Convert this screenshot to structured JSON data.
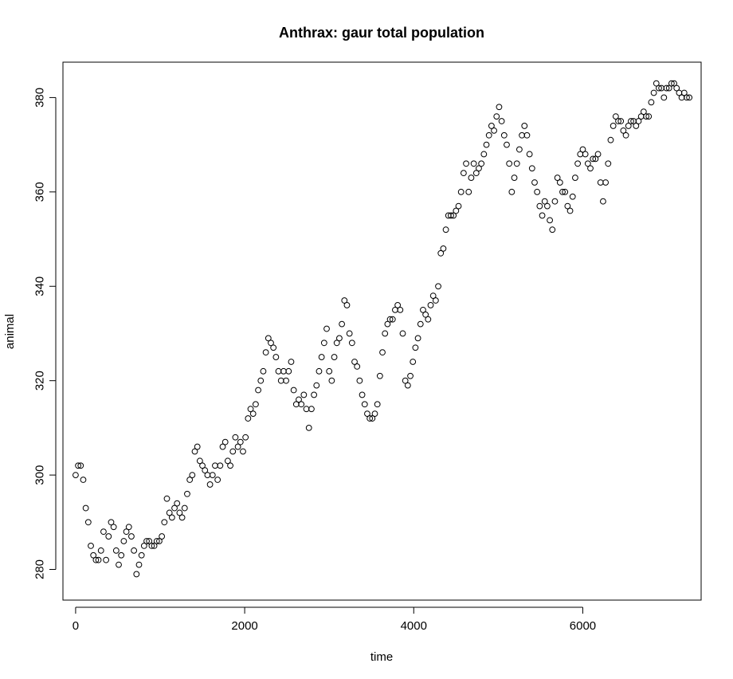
{
  "chart_data": {
    "type": "scatter",
    "title": "Anthrax: gaur total population",
    "xlabel": "time",
    "ylabel": "animal",
    "xlim": [
      -150,
      7400
    ],
    "ylim": [
      273.5,
      387.5
    ],
    "x_ticks": [
      0,
      2000,
      4000,
      6000
    ],
    "x_tick_labels": [
      "0",
      "2000",
      "4000",
      "6000"
    ],
    "y_ticks": [
      280,
      300,
      320,
      340,
      360,
      380
    ],
    "y_tick_labels": [
      "280",
      "300",
      "320",
      "340",
      "360",
      "380"
    ],
    "grid": false,
    "marker": "open-circle",
    "series": [
      {
        "points": [
          [
            0,
            300
          ],
          [
            30,
            302
          ],
          [
            60,
            302
          ],
          [
            90,
            299
          ],
          [
            120,
            293
          ],
          [
            150,
            290
          ],
          [
            180,
            285
          ],
          [
            210,
            283
          ],
          [
            240,
            282
          ],
          [
            270,
            282
          ],
          [
            300,
            284
          ],
          [
            330,
            288
          ],
          [
            360,
            282
          ],
          [
            390,
            287
          ],
          [
            420,
            290
          ],
          [
            450,
            289
          ],
          [
            480,
            284
          ],
          [
            510,
            281
          ],
          [
            540,
            283
          ],
          [
            570,
            286
          ],
          [
            600,
            288
          ],
          [
            630,
            289
          ],
          [
            660,
            287
          ],
          [
            690,
            284
          ],
          [
            720,
            279
          ],
          [
            750,
            281
          ],
          [
            780,
            283
          ],
          [
            810,
            285
          ],
          [
            840,
            286
          ],
          [
            870,
            286
          ],
          [
            900,
            285
          ],
          [
            930,
            285
          ],
          [
            960,
            286
          ],
          [
            990,
            286
          ],
          [
            1020,
            287
          ],
          [
            1050,
            290
          ],
          [
            1080,
            295
          ],
          [
            1110,
            292
          ],
          [
            1140,
            291
          ],
          [
            1170,
            293
          ],
          [
            1200,
            294
          ],
          [
            1230,
            292
          ],
          [
            1260,
            291
          ],
          [
            1290,
            293
          ],
          [
            1320,
            296
          ],
          [
            1350,
            299
          ],
          [
            1380,
            300
          ],
          [
            1410,
            305
          ],
          [
            1440,
            306
          ],
          [
            1470,
            303
          ],
          [
            1500,
            302
          ],
          [
            1530,
            301
          ],
          [
            1560,
            300
          ],
          [
            1590,
            298
          ],
          [
            1620,
            300
          ],
          [
            1650,
            302
          ],
          [
            1680,
            299
          ],
          [
            1710,
            302
          ],
          [
            1740,
            306
          ],
          [
            1770,
            307
          ],
          [
            1800,
            303
          ],
          [
            1830,
            302
          ],
          [
            1860,
            305
          ],
          [
            1890,
            308
          ],
          [
            1920,
            306
          ],
          [
            1950,
            307
          ],
          [
            1980,
            305
          ],
          [
            2010,
            308
          ],
          [
            2040,
            312
          ],
          [
            2070,
            314
          ],
          [
            2100,
            313
          ],
          [
            2130,
            315
          ],
          [
            2160,
            318
          ],
          [
            2190,
            320
          ],
          [
            2220,
            322
          ],
          [
            2250,
            326
          ],
          [
            2280,
            329
          ],
          [
            2310,
            328
          ],
          [
            2340,
            327
          ],
          [
            2370,
            325
          ],
          [
            2400,
            322
          ],
          [
            2430,
            320
          ],
          [
            2460,
            322
          ],
          [
            2490,
            320
          ],
          [
            2520,
            322
          ],
          [
            2550,
            324
          ],
          [
            2580,
            318
          ],
          [
            2610,
            315
          ],
          [
            2640,
            316
          ],
          [
            2670,
            315
          ],
          [
            2700,
            317
          ],
          [
            2730,
            314
          ],
          [
            2760,
            310
          ],
          [
            2790,
            314
          ],
          [
            2820,
            317
          ],
          [
            2850,
            319
          ],
          [
            2880,
            322
          ],
          [
            2910,
            325
          ],
          [
            2940,
            328
          ],
          [
            2970,
            331
          ],
          [
            3000,
            322
          ],
          [
            3030,
            320
          ],
          [
            3060,
            325
          ],
          [
            3090,
            328
          ],
          [
            3120,
            329
          ],
          [
            3150,
            332
          ],
          [
            3180,
            337
          ],
          [
            3210,
            336
          ],
          [
            3240,
            330
          ],
          [
            3270,
            328
          ],
          [
            3300,
            324
          ],
          [
            3330,
            323
          ],
          [
            3360,
            320
          ],
          [
            3390,
            317
          ],
          [
            3420,
            315
          ],
          [
            3450,
            313
          ],
          [
            3480,
            312
          ],
          [
            3510,
            312
          ],
          [
            3540,
            313
          ],
          [
            3570,
            315
          ],
          [
            3600,
            321
          ],
          [
            3630,
            326
          ],
          [
            3660,
            330
          ],
          [
            3690,
            332
          ],
          [
            3720,
            333
          ],
          [
            3750,
            333
          ],
          [
            3780,
            335
          ],
          [
            3810,
            336
          ],
          [
            3840,
            335
          ],
          [
            3870,
            330
          ],
          [
            3900,
            320
          ],
          [
            3930,
            319
          ],
          [
            3960,
            321
          ],
          [
            3990,
            324
          ],
          [
            4020,
            327
          ],
          [
            4050,
            329
          ],
          [
            4080,
            332
          ],
          [
            4110,
            335
          ],
          [
            4140,
            334
          ],
          [
            4170,
            333
          ],
          [
            4200,
            336
          ],
          [
            4230,
            338
          ],
          [
            4260,
            337
          ],
          [
            4290,
            340
          ],
          [
            4320,
            347
          ],
          [
            4350,
            348
          ],
          [
            4380,
            352
          ],
          [
            4410,
            355
          ],
          [
            4440,
            355
          ],
          [
            4470,
            355
          ],
          [
            4500,
            356
          ],
          [
            4530,
            357
          ],
          [
            4560,
            360
          ],
          [
            4590,
            364
          ],
          [
            4620,
            366
          ],
          [
            4650,
            360
          ],
          [
            4680,
            363
          ],
          [
            4710,
            366
          ],
          [
            4740,
            364
          ],
          [
            4770,
            365
          ],
          [
            4800,
            366
          ],
          [
            4830,
            368
          ],
          [
            4860,
            370
          ],
          [
            4890,
            372
          ],
          [
            4920,
            374
          ],
          [
            4950,
            373
          ],
          [
            4980,
            376
          ],
          [
            5010,
            378
          ],
          [
            5040,
            375
          ],
          [
            5070,
            372
          ],
          [
            5100,
            370
          ],
          [
            5130,
            366
          ],
          [
            5160,
            360
          ],
          [
            5190,
            363
          ],
          [
            5220,
            366
          ],
          [
            5250,
            369
          ],
          [
            5280,
            372
          ],
          [
            5310,
            374
          ],
          [
            5340,
            372
          ],
          [
            5370,
            368
          ],
          [
            5400,
            365
          ],
          [
            5430,
            362
          ],
          [
            5460,
            360
          ],
          [
            5490,
            357
          ],
          [
            5520,
            355
          ],
          [
            5550,
            358
          ],
          [
            5580,
            357
          ],
          [
            5610,
            354
          ],
          [
            5640,
            352
          ],
          [
            5670,
            358
          ],
          [
            5700,
            363
          ],
          [
            5730,
            362
          ],
          [
            5760,
            360
          ],
          [
            5790,
            360
          ],
          [
            5820,
            357
          ],
          [
            5850,
            356
          ],
          [
            5880,
            359
          ],
          [
            5910,
            363
          ],
          [
            5940,
            366
          ],
          [
            5970,
            368
          ],
          [
            6000,
            369
          ],
          [
            6030,
            368
          ],
          [
            6060,
            366
          ],
          [
            6090,
            365
          ],
          [
            6120,
            367
          ],
          [
            6150,
            367
          ],
          [
            6180,
            368
          ],
          [
            6210,
            362
          ],
          [
            6240,
            358
          ],
          [
            6270,
            362
          ],
          [
            6300,
            366
          ],
          [
            6330,
            371
          ],
          [
            6360,
            374
          ],
          [
            6390,
            376
          ],
          [
            6420,
            375
          ],
          [
            6450,
            375
          ],
          [
            6480,
            373
          ],
          [
            6510,
            372
          ],
          [
            6540,
            374
          ],
          [
            6570,
            375
          ],
          [
            6600,
            375
          ],
          [
            6630,
            374
          ],
          [
            6660,
            375
          ],
          [
            6690,
            376
          ],
          [
            6720,
            377
          ],
          [
            6750,
            376
          ],
          [
            6780,
            376
          ],
          [
            6810,
            379
          ],
          [
            6840,
            381
          ],
          [
            6870,
            383
          ],
          [
            6900,
            382
          ],
          [
            6930,
            382
          ],
          [
            6960,
            380
          ],
          [
            6990,
            382
          ],
          [
            7020,
            382
          ],
          [
            7050,
            383
          ],
          [
            7080,
            383
          ],
          [
            7110,
            382
          ],
          [
            7140,
            381
          ],
          [
            7170,
            380
          ],
          [
            7200,
            381
          ],
          [
            7230,
            380
          ],
          [
            7260,
            380
          ]
        ]
      }
    ]
  }
}
